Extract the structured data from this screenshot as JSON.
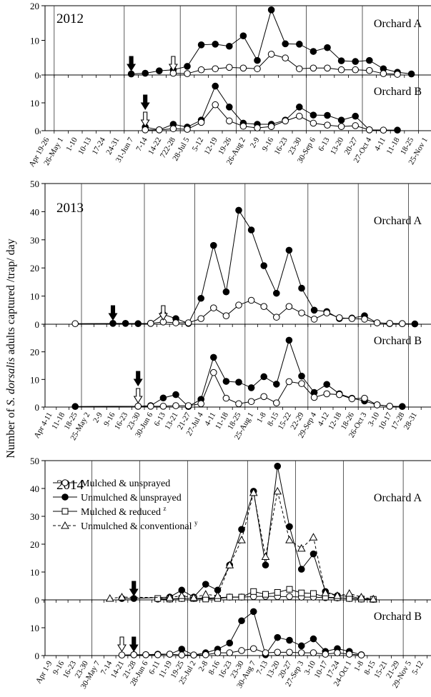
{
  "ylabel_pre": "Number of ",
  "ylabel_species": "S. dorsalis",
  "ylabel_post": " adults captured /trap/ day",
  "colors": {
    "line": "#000000",
    "open_fill": "#ffffff",
    "solid_fill": "#000000"
  },
  "legend": {
    "placement": "upper-left of 2014 Orchard A panel",
    "items": [
      {
        "label": "Mulched & unsprayed",
        "marker": "circle-open",
        "dash": false,
        "sup": ""
      },
      {
        "label": "Unmulched & unsprayed",
        "marker": "circle-filled",
        "dash": false,
        "sup": ""
      },
      {
        "label": "Mulched & reduced",
        "marker": "square-open",
        "dash": false,
        "sup": "z"
      },
      {
        "label": "Unmulched & conventional",
        "marker": "triangle-open",
        "dash": true,
        "sup": "y"
      }
    ]
  },
  "chart_data": [
    {
      "type": "line",
      "year": "2012",
      "xlabels": [
        "Apr 19-26",
        "26-May 1",
        "1-10",
        "10-13",
        "17-24",
        "24-31",
        "31-Jun 7",
        "7-14",
        "14-22",
        "722-28",
        "28-Jul 5",
        "5-12",
        "12-19",
        "19-26",
        "26-Aug 2",
        "2-9",
        "9-16",
        "16-23",
        "23-30",
        "30-Sep 6",
        "6-13",
        "13-20",
        "20-27",
        "27-Oct 4",
        "4-11",
        "11-18",
        "18-25",
        "25-Nov 1"
      ],
      "month_lines": [
        1.5,
        6.5,
        10.5,
        14.5,
        19.5,
        23.5,
        27.5
      ],
      "orchards": [
        {
          "label": "Orchard A",
          "ylim": [
            0,
            20
          ],
          "yticks": [
            0,
            10,
            20
          ],
          "series": [
            {
              "marker": "circle-filled",
              "dash": false,
              "x": [
                7,
                8,
                9,
                10,
                11,
                12,
                13,
                14,
                15,
                16,
                17,
                18,
                19,
                20,
                21,
                22,
                23,
                24,
                25,
                26,
                27
              ],
              "y": [
                0.3,
                0.5,
                1.2,
                1.5,
                2.5,
                8.7,
                8.9,
                8.3,
                11.3,
                4.2,
                18.8,
                9,
                8.9,
                6.8,
                7.9,
                4.1,
                3.9,
                4.2,
                1.8,
                0.8,
                0.3
              ]
            },
            {
              "marker": "circle-open",
              "dash": false,
              "x": [
                10,
                11,
                12,
                13,
                14,
                15,
                16,
                17,
                18,
                19,
                20,
                21,
                22,
                23,
                24,
                25,
                26
              ],
              "y": [
                0.5,
                0.4,
                1.5,
                1.8,
                2.2,
                2,
                1.8,
                6,
                4.9,
                1.8,
                2,
                2,
                1.5,
                1.5,
                1.3,
                0.4,
                0.2
              ]
            }
          ],
          "arrows": [
            {
              "x": 7,
              "kind": "filled"
            },
            {
              "x": 10,
              "kind": "open"
            }
          ]
        },
        {
          "label": "Orchard B",
          "ylim": [
            0,
            20
          ],
          "yticks": [
            0,
            10
          ],
          "series": [
            {
              "marker": "circle-filled",
              "dash": false,
              "x": [
                8,
                9,
                10,
                11,
                12,
                13,
                14,
                15,
                16,
                17,
                18,
                19,
                20,
                21,
                22,
                23,
                24,
                26
              ],
              "y": [
                1.3,
                0.3,
                2.3,
                1.3,
                3.8,
                16,
                8.5,
                2.7,
                2.3,
                2.3,
                3.8,
                8.5,
                5.6,
                5.5,
                3.8,
                5.2,
                0.3,
                0.2
              ]
            },
            {
              "marker": "circle-open",
              "dash": false,
              "x": [
                8,
                9,
                10,
                11,
                12,
                13,
                14,
                15,
                16,
                17,
                18,
                19,
                20,
                21,
                22,
                23,
                24,
                25
              ],
              "y": [
                0.3,
                0.3,
                0.7,
                0.5,
                3,
                9.3,
                3.5,
                1.6,
                1,
                1.5,
                3.5,
                5.2,
                2.7,
                2,
                1.5,
                1.8,
                0.3,
                0.2
              ]
            }
          ],
          "arrows": [
            {
              "x": 8,
              "kind": "filled"
            },
            {
              "x": 8,
              "kind": "open"
            }
          ]
        }
      ]
    },
    {
      "type": "line",
      "year": "2013",
      "xlabels": [
        "Apr 4-11",
        "11-18",
        "18-25",
        "25-May 2",
        "2-9",
        "9-16",
        "16-23",
        "23-30",
        "30-Jun 6",
        "6-13",
        "13-21",
        "21-27",
        "27-Jul 4",
        "4-11",
        "11-18",
        "18-25",
        "25-Aug 1",
        "1-8",
        "8-15",
        "15-22",
        "22-29",
        "29-Sep 4",
        "4-12",
        "12-18",
        "18-26",
        "26-Oct 3",
        "3-10",
        "10-17",
        "17-28",
        "28-31"
      ],
      "month_lines": [
        3.5,
        8.5,
        12.5,
        16.5,
        21.5,
        25.5,
        29.5
      ],
      "orchards": [
        {
          "label": "Orchard A",
          "ylim": [
            0,
            50
          ],
          "yticks": [
            0,
            10,
            20,
            30,
            40,
            50
          ],
          "series": [
            {
              "marker": "circle-filled",
              "dash": false,
              "x": [
                6,
                7,
                8,
                9,
                10,
                11,
                12,
                13,
                14,
                15,
                16,
                17,
                18,
                19,
                20,
                21,
                22,
                23,
                24,
                25,
                26,
                27,
                28,
                29,
                30
              ],
              "y": [
                0.3,
                0.3,
                0.2,
                0.3,
                3.5,
                2,
                0.3,
                9.2,
                28,
                11.5,
                40.5,
                33.5,
                20.8,
                11,
                26.3,
                12.8,
                5,
                4.5,
                2,
                2.2,
                3,
                0.5,
                0.2,
                0.2,
                0.1
              ]
            },
            {
              "marker": "circle-open",
              "dash": false,
              "x": [
                3,
                9,
                10,
                11,
                12,
                13,
                14,
                15,
                16,
                17,
                18,
                19,
                20,
                21,
                22,
                23,
                24,
                25,
                26,
                27,
                28,
                29
              ],
              "y": [
                0.2,
                0.3,
                0.8,
                0.5,
                0.5,
                2,
                5.8,
                3,
                6.8,
                8.5,
                6.3,
                2.5,
                6.3,
                4,
                1.8,
                4,
                2.3,
                2,
                1.8,
                0.5,
                0.3,
                0.2
              ]
            }
          ],
          "arrows": [
            {
              "x": 6,
              "kind": "filled"
            },
            {
              "x": 10,
              "kind": "open"
            }
          ]
        },
        {
          "label": "Orchard B",
          "ylim": [
            0,
            30
          ],
          "yticks": [
            0,
            10,
            20
          ],
          "series": [
            {
              "marker": "circle-filled",
              "dash": false,
              "x": [
                3,
                8,
                9,
                10,
                11,
                12,
                13,
                14,
                15,
                16,
                17,
                18,
                19,
                20,
                21,
                22,
                23,
                24,
                25,
                26,
                27,
                28,
                29
              ],
              "y": [
                0.2,
                0.3,
                0.5,
                3.3,
                4.5,
                0.2,
                2.8,
                18,
                9.3,
                9,
                7,
                11,
                8.3,
                24.2,
                11.2,
                5.3,
                8.2,
                4.8,
                3.2,
                2.2,
                0.8,
                0.3,
                0.2
              ]
            },
            {
              "marker": "circle-open",
              "dash": false,
              "x": [
                8,
                9,
                10,
                11,
                12,
                13,
                14,
                15,
                16,
                17,
                18,
                19,
                20,
                21,
                22,
                23,
                24,
                25,
                26,
                27,
                28
              ],
              "y": [
                0.3,
                0.3,
                0.3,
                0.5,
                0.5,
                1.2,
                12.5,
                3.2,
                1.2,
                2,
                3.8,
                1.5,
                9.2,
                8.5,
                3.5,
                4.8,
                4.5,
                3,
                3.2,
                0.8,
                0.3
              ]
            }
          ],
          "arrows": [
            {
              "x": 8,
              "kind": "filled"
            },
            {
              "x": 8,
              "kind": "open"
            }
          ]
        }
      ]
    },
    {
      "type": "line",
      "year": "2014",
      "xlabels": [
        "Apr 1-9",
        "9-16",
        "16-23",
        "23-30",
        "30-May 7",
        "7-14",
        "14-21",
        "21-28",
        "28-Jun 6",
        "6-11",
        "11-19",
        "19-25",
        "25-Jul 2",
        "2-8",
        "8-16",
        "16-23",
        "23-30",
        "30-Aug 7",
        "7-13",
        "13-20",
        "20-27",
        "27-Sep 3",
        "3-10",
        "10-17",
        "17-24",
        "24-Oct 1",
        "1-8",
        "8-15",
        "15-21",
        "21-29",
        "29-Nov 5",
        "5-12"
      ],
      "month_lines": [
        4.5,
        8.5,
        12.5,
        17.5,
        21.5,
        25.5,
        30.5
      ],
      "orchards": [
        {
          "label": "Orchard A",
          "ylim": [
            0,
            50
          ],
          "yticks": [
            0,
            10,
            20,
            30,
            40,
            50
          ],
          "series": [
            {
              "name": "Mulched & unsprayed",
              "marker": "circle-open",
              "dash": false,
              "x": [
                10,
                11,
                12,
                13,
                14,
                15,
                16,
                17,
                18,
                19,
                20,
                21,
                22,
                23,
                24,
                25,
                26,
                27,
                28
              ],
              "y": [
                0.3,
                0.3,
                0.5,
                0.5,
                0.6,
                0.8,
                1,
                1,
                1.2,
                1.3,
                1.2,
                1.2,
                1,
                1,
                0.8,
                0.7,
                0.5,
                0.3,
                0.2
              ]
            },
            {
              "name": "Unmulched & unsprayed",
              "marker": "circle-filled",
              "dash": false,
              "x": [
                7,
                8,
                11,
                12,
                13,
                14,
                15,
                16,
                17,
                18,
                19,
                20,
                21,
                22,
                23,
                24,
                25,
                26,
                27,
                28
              ],
              "y": [
                0.5,
                0.5,
                1,
                3.5,
                1,
                5.6,
                3.5,
                12.5,
                25.3,
                39,
                12.5,
                48,
                26.3,
                11,
                16.5,
                3,
                1.5,
                1.3,
                0.5,
                0.2
              ]
            },
            {
              "name": "Mulched & reduced",
              "marker": "square-open",
              "dash": false,
              "x": [
                10,
                11,
                12,
                13,
                14,
                15,
                16,
                17,
                18,
                19,
                20,
                21,
                22,
                23,
                24,
                25,
                26,
                27,
                28
              ],
              "y": [
                0.5,
                0.3,
                0.5,
                0.5,
                0.3,
                0.5,
                1,
                1,
                3,
                2,
                2.7,
                3.8,
                2.5,
                2.3,
                1,
                0.8,
                0.5,
                0.3,
                0.2
              ]
            },
            {
              "name": "Unmulched & conventional",
              "marker": "triangle-open",
              "dash": true,
              "x": [
                6,
                7,
                11,
                12,
                13,
                14,
                15,
                16,
                17,
                18,
                19,
                20,
                21,
                22,
                23,
                24,
                25,
                26,
                27,
                28
              ],
              "y": [
                0.5,
                1,
                0.8,
                1.5,
                0.8,
                2,
                1.5,
                12.5,
                21.5,
                38.5,
                15.5,
                39,
                21.5,
                18.5,
                22.5,
                2.5,
                1.5,
                2.3,
                1,
                0.3
              ]
            }
          ],
          "arrows": [
            {
              "x": 8,
              "kind": "filled"
            }
          ]
        },
        {
          "label": "Orchard B",
          "ylim": [
            0,
            20
          ],
          "yticks": [
            0,
            10
          ],
          "series": [
            {
              "marker": "circle-filled",
              "dash": false,
              "x": [
                8,
                9,
                10,
                11,
                12,
                13,
                14,
                15,
                16,
                17,
                18,
                19,
                20,
                21,
                22,
                23,
                24,
                25,
                26,
                27
              ],
              "y": [
                0.3,
                0.3,
                0.5,
                0.5,
                2.3,
                0.2,
                1,
                2.3,
                4.5,
                12.5,
                15.8,
                0.3,
                6.5,
                5.5,
                3.5,
                6,
                1.5,
                2.5,
                1.5,
                0.3
              ]
            },
            {
              "marker": "circle-open",
              "dash": false,
              "x": [
                7,
                8,
                9,
                10,
                11,
                12,
                13,
                14,
                15,
                16,
                17,
                18,
                19,
                20,
                21,
                22,
                23,
                24,
                25,
                26,
                27
              ],
              "y": [
                0.2,
                0.3,
                0.3,
                0.3,
                0.5,
                0.2,
                0.2,
                0.3,
                1,
                1,
                1.8,
                2.5,
                1,
                1.2,
                1.2,
                1,
                1,
                0.5,
                1,
                0.5,
                0.2
              ]
            }
          ],
          "arrows": [
            {
              "x": 7,
              "kind": "open"
            },
            {
              "x": 8,
              "kind": "filled"
            }
          ]
        }
      ]
    }
  ]
}
